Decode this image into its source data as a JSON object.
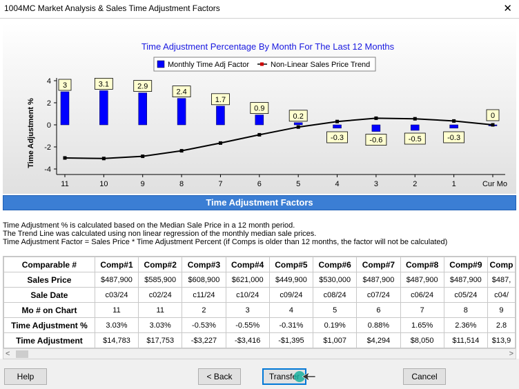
{
  "window": {
    "title": "1004MC Market Analysis & Sales Time Adjustment Factors",
    "close_glyph": "✕"
  },
  "chart_data": {
    "type": "bar",
    "title": "Time Adjustment Percentage By Month For The Last 12 Months",
    "ylabel": "Time Adjustment %",
    "xlabel": "",
    "ylim": [
      -4.5,
      4.5
    ],
    "yticks": [
      4,
      2,
      0,
      -2,
      -4
    ],
    "categories": [
      "11",
      "10",
      "9",
      "8",
      "7",
      "6",
      "5",
      "4",
      "3",
      "2",
      "1",
      "Cur Mo"
    ],
    "series": [
      {
        "name": "Monthly Time Adj Factor",
        "type": "bar",
        "color": "#0000ff",
        "values": [
          3,
          3.1,
          2.9,
          2.4,
          1.7,
          0.9,
          0.2,
          -0.3,
          -0.6,
          -0.5,
          -0.3,
          0
        ],
        "labels": [
          "3",
          "3.1",
          "2.9",
          "2.4",
          "1.7",
          "0.9",
          "0.2",
          "-0.3",
          "-0.6",
          "-0.5",
          "-0.3",
          "0"
        ]
      },
      {
        "name": "Non-Linear Sales Price Trend",
        "type": "line",
        "color": "#000000",
        "values": [
          -3.0,
          -3.05,
          -2.85,
          -2.35,
          -1.65,
          -0.9,
          -0.2,
          0.3,
          0.6,
          0.55,
          0.35,
          0
        ]
      }
    ],
    "legend_position": "top",
    "grid": false,
    "legend_series_marker_color": "#cc0000"
  },
  "section": {
    "title": "Time Adjustment Factors"
  },
  "description": [
    "Time Adjustment % is calculated based on the Median Sale Price in a 12 month period.",
    "The Trend Line was calculated using non linear regression of the monthly median sale prices.",
    "Time Adjustment Factor = Sales Price * Time Adjustment Percent (if Comps is older than 12 months, the factor will not be calculated)"
  ],
  "grid": {
    "headers": [
      "Comparable #",
      "Comp#1",
      "Comp#2",
      "Comp#3",
      "Comp#4",
      "Comp#5",
      "Comp#6",
      "Comp#7",
      "Comp#8",
      "Comp#9",
      "Comp"
    ],
    "rows": [
      {
        "label": "Sales Price",
        "cells": [
          "$487,900",
          "$585,900",
          "$608,900",
          "$621,000",
          "$449,900",
          "$530,000",
          "$487,900",
          "$487,900",
          "$487,900",
          "$487,"
        ]
      },
      {
        "label": "Sale Date",
        "cells": [
          "c03/24",
          "c02/24",
          "c11/24",
          "c10/24",
          "c09/24",
          "c08/24",
          "c07/24",
          "c06/24",
          "c05/24",
          "c04/"
        ]
      },
      {
        "label": "Mo # on Chart",
        "cells": [
          "11",
          "11",
          "2",
          "3",
          "4",
          "5",
          "6",
          "7",
          "8",
          "9"
        ]
      },
      {
        "label": "Time Adjustment %",
        "cells": [
          "3.03%",
          "3.03%",
          "-0.53%",
          "-0.55%",
          "-0.31%",
          "0.19%",
          "0.88%",
          "1.65%",
          "2.36%",
          "2.8"
        ]
      },
      {
        "label": "Time Adjustment",
        "cells": [
          "$14,783",
          "$17,753",
          "-$3,227",
          "-$3,416",
          "-$1,395",
          "$1,007",
          "$4,294",
          "$8,050",
          "$11,514",
          "$13,9"
        ]
      }
    ]
  },
  "scrollbar": {
    "left_arrow": "<",
    "right_arrow": ">"
  },
  "buttons": {
    "help": "Help",
    "back": "< Back",
    "transfer": "Transfer",
    "cancel": "Cancel"
  }
}
